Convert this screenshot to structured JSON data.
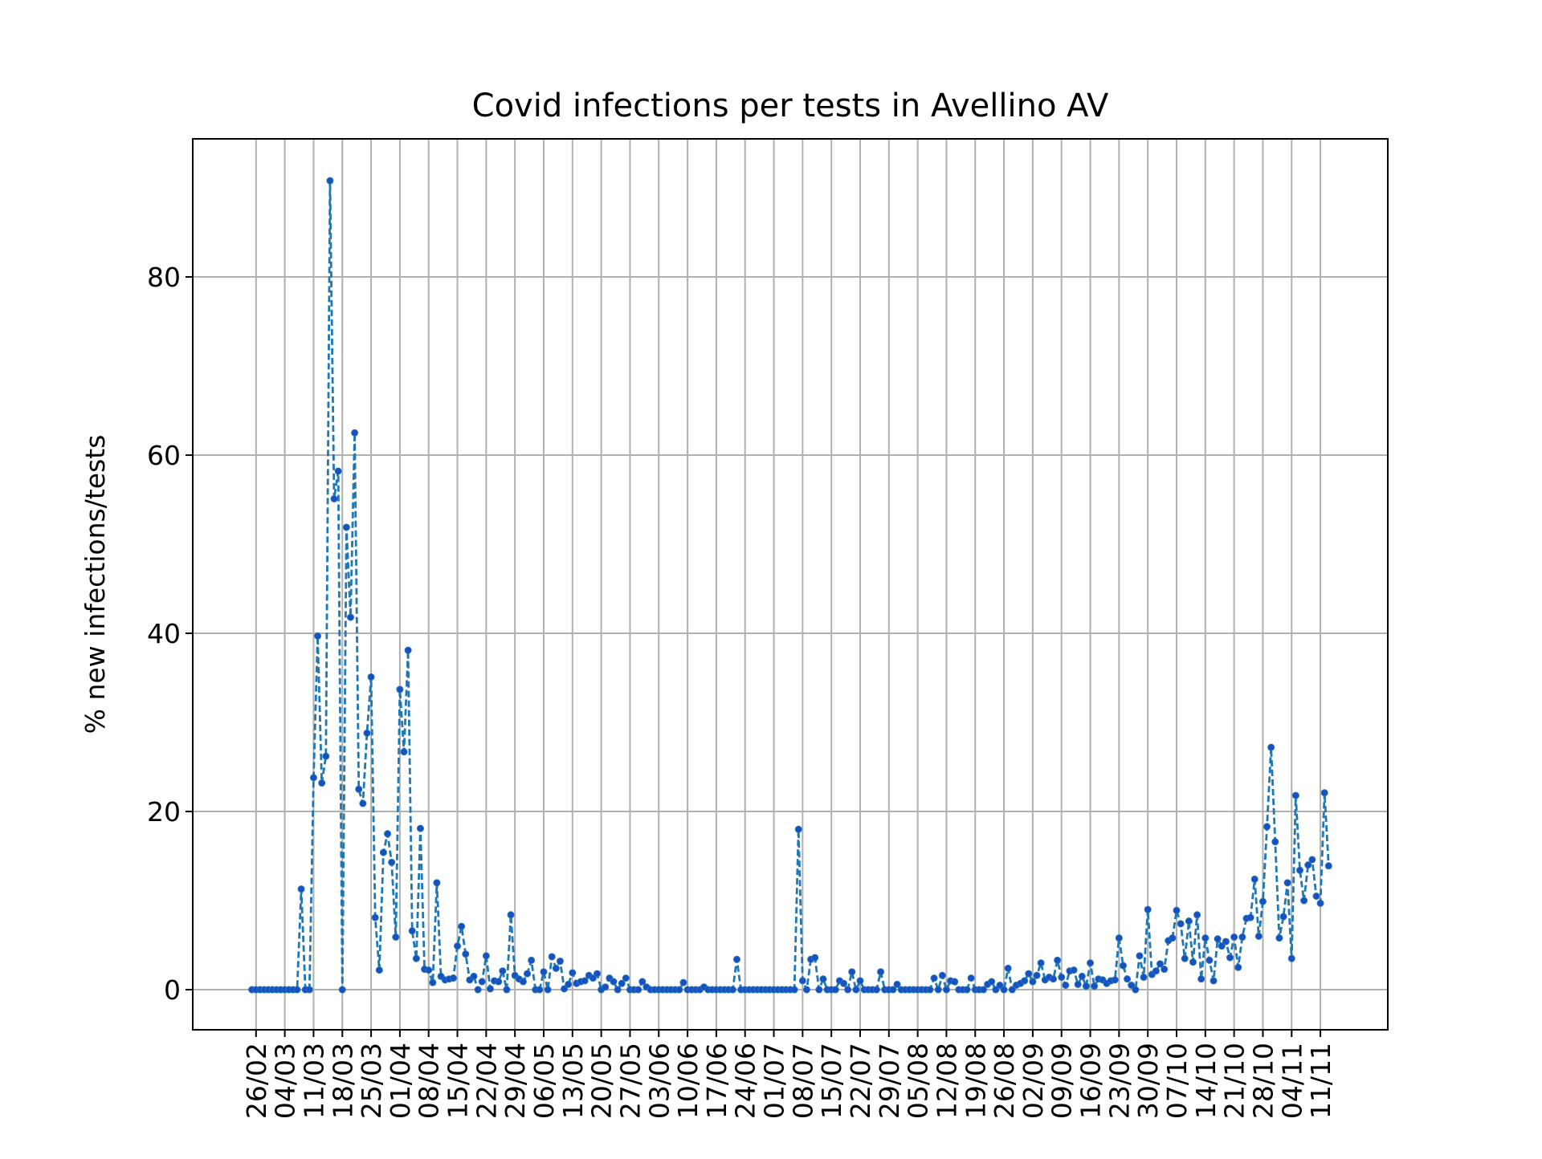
{
  "chart_data": {
    "type": "line",
    "title": "Covid infections per tests in Avellino AV",
    "xlabel": "",
    "ylabel": "% new infections/tests",
    "ylim": [
      -4.5,
      95.5
    ],
    "yticks": [
      0,
      20,
      40,
      60,
      80
    ],
    "grid": true,
    "legend": "none",
    "x_tick_labels": [
      "26/02",
      "04/03",
      "11/03",
      "18/03",
      "25/03",
      "01/04",
      "08/04",
      "15/04",
      "22/04",
      "29/04",
      "06/05",
      "13/05",
      "20/05",
      "27/05",
      "03/06",
      "10/06",
      "17/06",
      "24/06",
      "01/07",
      "08/07",
      "15/07",
      "22/07",
      "29/07",
      "05/08",
      "12/08",
      "19/08",
      "26/08",
      "02/09",
      "09/09",
      "16/09",
      "23/09",
      "30/09",
      "07/10",
      "14/10",
      "21/10",
      "28/10",
      "04/11",
      "11/11"
    ],
    "series": [
      {
        "color": "#1f77b4",
        "marker_color": "#1a4fc4",
        "line_style": "dashed",
        "start_label": "25/02",
        "values": [
          0,
          0,
          0,
          0,
          0,
          0,
          0,
          0,
          0,
          0,
          0,
          0,
          11.3,
          0,
          0,
          23.8,
          39.7,
          23.2,
          26.2,
          90.8,
          55.1,
          58.2,
          0,
          51.9,
          41.8,
          62.5,
          22.5,
          20.9,
          28.8,
          35.1,
          8.1,
          2.2,
          15.4,
          17.5,
          14.3,
          5.9,
          33.7,
          26.7,
          38.1,
          6.6,
          3.5,
          18.1,
          2.3,
          2.2,
          0.8,
          12.0,
          1.5,
          1.1,
          1.2,
          1.3,
          4.9,
          7.1,
          4.0,
          1.1,
          1.5,
          0.0,
          0.9,
          3.8,
          0.1,
          1.0,
          0.9,
          2.1,
          0.0,
          8.4,
          1.6,
          1.2,
          0.9,
          1.8,
          3.3,
          0.0,
          0.0,
          2.0,
          0.0,
          3.7,
          2.4,
          3.2,
          0.1,
          0.6,
          1.9,
          0.7,
          0.9,
          1.0,
          1.6,
          1.3,
          1.8,
          0.0,
          0.3,
          1.3,
          0.9,
          0.0,
          0.7,
          1.3,
          0.0,
          0.0,
          0.0,
          0.9,
          0.3,
          0.0,
          0.0,
          0.0,
          0.0,
          0.0,
          0.0,
          0.0,
          0.0,
          0.8,
          0.0,
          0.0,
          0.0,
          0.0,
          0.3,
          0.0,
          0.0,
          0.0,
          0.0,
          0.0,
          0.0,
          0.0,
          3.4,
          0.0,
          0.0,
          0.0,
          0.0,
          0.0,
          0.0,
          0.0,
          0.0,
          0.0,
          0.0,
          0.0,
          0.0,
          0.0,
          0.0,
          18.0,
          1.0,
          0.0,
          3.4,
          3.6,
          0.0,
          1.2,
          0.0,
          0.0,
          0.0,
          1.0,
          0.7,
          0.0,
          2.0,
          0.0,
          1.0,
          0.0,
          0.0,
          0.0,
          0.0,
          2.0,
          0.0,
          0.0,
          0.0,
          0.6,
          0.0,
          0.0,
          0.0,
          0.0,
          0.0,
          0.0,
          0.0,
          0.0,
          1.3,
          0.0,
          1.6,
          0.0,
          1.0,
          0.9,
          0.0,
          0.0,
          0.0,
          1.3,
          0.0,
          0.0,
          0.0,
          0.6,
          0.9,
          0.0,
          0.5,
          0.0,
          2.4,
          0.0,
          0.5,
          0.7,
          1.0,
          1.8,
          0.9,
          1.6,
          3.0,
          1.1,
          1.4,
          1.2,
          3.3,
          1.4,
          0.5,
          2.1,
          2.2,
          0.6,
          1.5,
          0.4,
          3.0,
          0.4,
          1.2,
          1.1,
          0.7,
          1.0,
          1.1,
          5.8,
          2.7,
          1.2,
          0.5,
          0.0,
          3.8,
          1.4,
          9.0,
          1.7,
          2.1,
          2.9,
          2.3,
          5.5,
          5.8,
          8.9,
          7.4,
          3.5,
          7.7,
          3.1,
          8.4,
          1.2,
          5.8,
          3.3,
          1.0,
          5.7,
          4.9,
          5.4,
          3.6,
          5.9,
          2.5,
          5.9,
          8.0,
          8.1,
          12.4,
          6.0,
          9.9,
          18.3,
          27.2,
          16.6,
          5.8,
          8.2,
          12.0,
          3.5,
          21.8,
          13.4,
          10.0,
          14.0,
          14.6,
          10.5,
          9.7,
          22.1,
          13.9
        ]
      }
    ]
  }
}
